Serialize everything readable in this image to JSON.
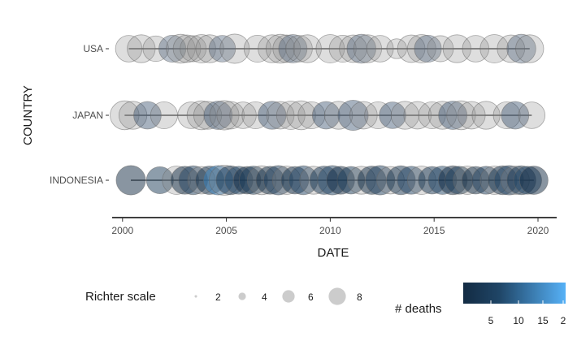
{
  "chart_data": {
    "type": "scatter",
    "xlabel": "DATE",
    "ylabel": "COUNTRY",
    "xlim": [
      1999.5,
      2020.9
    ],
    "x_ticks": [
      2000,
      2005,
      2010,
      2015,
      2020
    ],
    "x_tick_labels": [
      "2000",
      "2005",
      "2010",
      "2015",
      "2020"
    ],
    "y_categories": [
      "USA",
      "JAPAN",
      "INDONESIA"
    ],
    "grid": false,
    "size_legend": {
      "title": "Richter scale",
      "values": [
        2,
        4,
        6,
        8
      ],
      "labels": [
        "2",
        "4",
        "6",
        "8"
      ]
    },
    "color_legend": {
      "title": "# deaths",
      "labels": [
        "5",
        "10",
        "15",
        "2"
      ],
      "colors": [
        "#132B43",
        "#56B1F7"
      ]
    },
    "series": [
      {
        "country": "USA",
        "points": [
          {
            "x": 2000.3,
            "mag": 6.6
          },
          {
            "x": 2000.9,
            "mag": 6.9
          },
          {
            "x": 2001.6,
            "mag": 6.4
          },
          {
            "x": 2002.4,
            "mag": 6.7
          },
          {
            "x": 2002.8,
            "mag": 7.1
          },
          {
            "x": 2003.1,
            "mag": 6.8
          },
          {
            "x": 2003.4,
            "mag": 6.5
          },
          {
            "x": 2003.8,
            "mag": 7.0
          },
          {
            "x": 2004.2,
            "mag": 6.9
          },
          {
            "x": 2004.8,
            "mag": 6.6
          },
          {
            "x": 2005.4,
            "mag": 7.2
          },
          {
            "x": 2006.5,
            "mag": 6.7
          },
          {
            "x": 2007.2,
            "mag": 6.9
          },
          {
            "x": 2007.6,
            "mag": 7.1
          },
          {
            "x": 2007.9,
            "mag": 6.8
          },
          {
            "x": 2008.2,
            "mag": 7.0
          },
          {
            "x": 2008.5,
            "mag": 6.6
          },
          {
            "x": 2008.9,
            "mag": 6.9
          },
          {
            "x": 2010.0,
            "mag": 7.0
          },
          {
            "x": 2010.6,
            "mag": 6.7
          },
          {
            "x": 2011.1,
            "mag": 6.8
          },
          {
            "x": 2011.5,
            "mag": 7.1
          },
          {
            "x": 2011.8,
            "mag": 6.9
          },
          {
            "x": 2012.4,
            "mag": 6.6
          },
          {
            "x": 2013.2,
            "mag": 5.2
          },
          {
            "x": 2013.9,
            "mag": 6.8
          },
          {
            "x": 2014.4,
            "mag": 7.0
          },
          {
            "x": 2014.7,
            "mag": 6.7
          },
          {
            "x": 2015.3,
            "mag": 6.5
          },
          {
            "x": 2016.1,
            "mag": 6.9
          },
          {
            "x": 2017.0,
            "mag": 6.6
          },
          {
            "x": 2017.9,
            "mag": 7.0
          },
          {
            "x": 2018.7,
            "mag": 6.8
          },
          {
            "x": 2019.2,
            "mag": 7.1
          },
          {
            "x": 2019.6,
            "mag": 6.9
          }
        ]
      },
      {
        "country": "JAPAN",
        "points": [
          {
            "x": 2000.1,
            "mag": 7.1
          },
          {
            "x": 2000.5,
            "mag": 6.9
          },
          {
            "x": 2001.2,
            "mag": 6.8
          },
          {
            "x": 2002.0,
            "mag": 6.7
          },
          {
            "x": 2003.3,
            "mag": 6.6
          },
          {
            "x": 2003.8,
            "mag": 7.1
          },
          {
            "x": 2004.1,
            "mag": 6.9
          },
          {
            "x": 2004.6,
            "mag": 7.0
          },
          {
            "x": 2004.9,
            "mag": 7.2
          },
          {
            "x": 2005.2,
            "mag": 6.8
          },
          {
            "x": 2005.8,
            "mag": 6.6
          },
          {
            "x": 2006.4,
            "mag": 6.7
          },
          {
            "x": 2007.2,
            "mag": 6.9
          },
          {
            "x": 2007.6,
            "mag": 6.8
          },
          {
            "x": 2008.1,
            "mag": 7.0
          },
          {
            "x": 2008.6,
            "mag": 7.1
          },
          {
            "x": 2009.1,
            "mag": 6.7
          },
          {
            "x": 2009.8,
            "mag": 6.8
          },
          {
            "x": 2010.4,
            "mag": 6.9
          },
          {
            "x": 2011.1,
            "mag": 7.4
          },
          {
            "x": 2011.6,
            "mag": 6.8
          },
          {
            "x": 2012.3,
            "mag": 6.7
          },
          {
            "x": 2013.0,
            "mag": 6.6
          },
          {
            "x": 2013.6,
            "mag": 6.9
          },
          {
            "x": 2014.2,
            "mag": 6.8
          },
          {
            "x": 2014.9,
            "mag": 6.7
          },
          {
            "x": 2015.4,
            "mag": 6.9
          },
          {
            "x": 2015.9,
            "mag": 7.0
          },
          {
            "x": 2016.3,
            "mag": 7.1
          },
          {
            "x": 2016.8,
            "mag": 6.8
          },
          {
            "x": 2017.5,
            "mag": 6.9
          },
          {
            "x": 2018.5,
            "mag": 6.7
          },
          {
            "x": 2018.9,
            "mag": 6.8
          },
          {
            "x": 2019.7,
            "mag": 6.6
          }
        ]
      },
      {
        "country": "INDONESIA",
        "points": [
          {
            "x": 2000.4,
            "mag": 7.2
          },
          {
            "x": 2001.8,
            "mag": 6.7
          },
          {
            "x": 2002.6,
            "mag": 7.0
          },
          {
            "x": 2003.0,
            "mag": 6.9
          },
          {
            "x": 2003.4,
            "mag": 7.1
          },
          {
            "x": 2003.8,
            "mag": 6.8
          },
          {
            "x": 2004.2,
            "mag": 7.0
          },
          {
            "x": 2004.6,
            "mag": 7.2
          },
          {
            "x": 2004.9,
            "mag": 7.4
          },
          {
            "x": 2005.2,
            "mag": 7.1
          },
          {
            "x": 2005.6,
            "mag": 6.9
          },
          {
            "x": 2006.0,
            "mag": 6.8
          },
          {
            "x": 2006.3,
            "mag": 7.0
          },
          {
            "x": 2006.7,
            "mag": 7.1
          },
          {
            "x": 2007.1,
            "mag": 6.9
          },
          {
            "x": 2007.5,
            "mag": 7.2
          },
          {
            "x": 2007.9,
            "mag": 7.0
          },
          {
            "x": 2008.3,
            "mag": 6.8
          },
          {
            "x": 2008.7,
            "mag": 7.1
          },
          {
            "x": 2009.2,
            "mag": 6.9
          },
          {
            "x": 2009.7,
            "mag": 7.0
          },
          {
            "x": 2010.1,
            "mag": 7.2
          },
          {
            "x": 2010.5,
            "mag": 6.9
          },
          {
            "x": 2011.0,
            "mag": 6.8
          },
          {
            "x": 2011.5,
            "mag": 6.9
          },
          {
            "x": 2012.0,
            "mag": 7.0
          },
          {
            "x": 2012.4,
            "mag": 7.2
          },
          {
            "x": 2012.9,
            "mag": 6.8
          },
          {
            "x": 2013.4,
            "mag": 7.1
          },
          {
            "x": 2013.9,
            "mag": 6.9
          },
          {
            "x": 2014.4,
            "mag": 7.0
          },
          {
            "x": 2014.9,
            "mag": 6.8
          },
          {
            "x": 2015.4,
            "mag": 7.0
          },
          {
            "x": 2015.9,
            "mag": 7.1
          },
          {
            "x": 2016.2,
            "mag": 6.9
          },
          {
            "x": 2016.6,
            "mag": 7.0
          },
          {
            "x": 2017.0,
            "mag": 6.8
          },
          {
            "x": 2017.5,
            "mag": 6.9
          },
          {
            "x": 2017.9,
            "mag": 7.0
          },
          {
            "x": 2018.3,
            "mag": 7.1
          },
          {
            "x": 2018.6,
            "mag": 7.2
          },
          {
            "x": 2018.9,
            "mag": 7.0
          },
          {
            "x": 2019.2,
            "mag": 7.1
          },
          {
            "x": 2019.5,
            "mag": 6.9
          },
          {
            "x": 2019.8,
            "mag": 7.0
          }
        ]
      }
    ]
  }
}
